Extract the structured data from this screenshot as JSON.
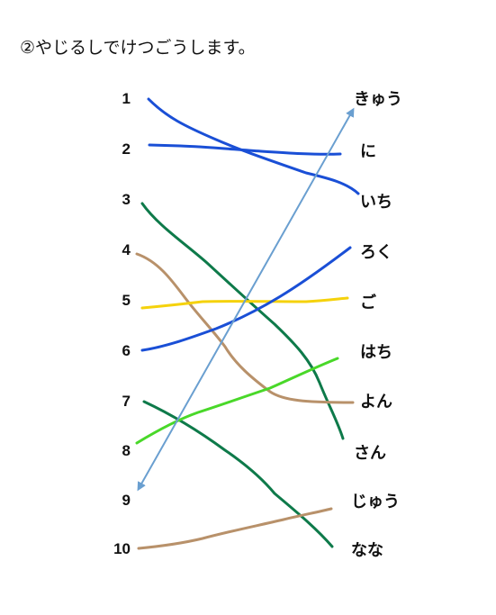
{
  "title": "②やじるしでけつごうします。",
  "numbers": [
    "1",
    "2",
    "3",
    "4",
    "5",
    "6",
    "7",
    "8",
    "9",
    "10"
  ],
  "words": [
    "きゅう",
    "に",
    "いち",
    "ろく",
    "ご",
    "はち",
    "よん",
    "さん",
    "じゅう",
    "なな"
  ],
  "colors": {
    "blue": "#1a4fd6",
    "green": "#0e7a4a",
    "tan": "#b8916a",
    "yellow": "#f5d20c",
    "lime": "#49d829",
    "arrow": "#6a9fd0"
  }
}
